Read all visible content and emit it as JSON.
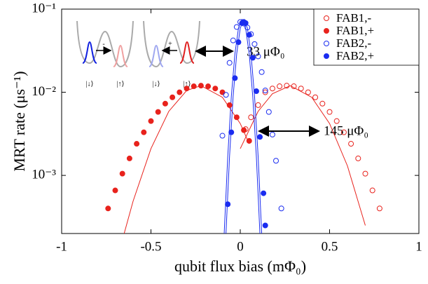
{
  "chart_data": {
    "type": "scatter",
    "xlabel": "qubit flux bias (mΦ₀)",
    "ylabel": "MRT rate (μs⁻¹)",
    "xlim": [
      -1,
      1
    ],
    "ylim": [
      0.0002,
      0.1
    ],
    "ylog": true,
    "xticks": [
      -1,
      -0.5,
      0,
      0.5,
      1
    ],
    "yticks": [
      {
        "value": 0.001,
        "label": "10⁻³"
      },
      {
        "value": 0.01,
        "label": "10⁻²"
      },
      {
        "value": 0.1,
        "label": "10⁻¹"
      }
    ],
    "legend": "upper right",
    "series": [
      {
        "name": "FAB1,-",
        "color": "#e8221c",
        "marker": "open",
        "x": [
          0.03,
          0.06,
          0.1,
          0.14,
          0.18,
          0.22,
          0.26,
          0.3,
          0.34,
          0.38,
          0.42,
          0.46,
          0.5,
          0.54,
          0.58,
          0.62,
          0.66,
          0.7,
          0.74,
          0.78
        ],
        "values": [
          0.0036,
          0.005,
          0.007,
          0.01,
          0.0111,
          0.0118,
          0.012,
          0.0118,
          0.0111,
          0.01,
          0.0087,
          0.0073,
          0.0058,
          0.0045,
          0.0033,
          0.0024,
          0.0016,
          0.00105,
          0.00066,
          0.0004
        ]
      },
      {
        "name": "FAB1,+",
        "color": "#e8221c",
        "marker": "filled",
        "x": [
          -0.74,
          -0.7,
          -0.66,
          -0.62,
          -0.58,
          -0.54,
          -0.5,
          -0.46,
          -0.42,
          -0.38,
          -0.34,
          -0.3,
          -0.26,
          -0.22,
          -0.18,
          -0.14,
          -0.1,
          -0.06,
          -0.02,
          0.02,
          0.05
        ],
        "values": [
          0.0004,
          0.00066,
          0.00105,
          0.0016,
          0.0024,
          0.0033,
          0.0045,
          0.0058,
          0.0073,
          0.0087,
          0.01,
          0.0111,
          0.0118,
          0.012,
          0.0118,
          0.0111,
          0.01,
          0.007,
          0.005,
          0.0035,
          0.0026
        ]
      },
      {
        "name": "FAB2,-",
        "color": "#1a2cf0",
        "marker": "open",
        "x": [
          -0.1,
          -0.08,
          -0.06,
          -0.04,
          -0.02,
          0.0,
          0.02,
          0.04,
          0.06,
          0.08,
          0.1,
          0.12,
          0.14,
          0.16,
          0.18,
          0.2,
          0.23
        ],
        "values": [
          0.003,
          0.0093,
          0.0226,
          0.042,
          0.061,
          0.07,
          0.067,
          0.06,
          0.05,
          0.038,
          0.027,
          0.0175,
          0.0105,
          0.0058,
          0.0031,
          0.0015,
          0.0004
        ]
      },
      {
        "name": "FAB2,+",
        "color": "#1a2cf0",
        "marker": "filled",
        "x": [
          -0.07,
          -0.05,
          -0.03,
          -0.01,
          0.01,
          0.02,
          0.03,
          0.05,
          0.07,
          0.09,
          0.11,
          0.13,
          0.14
        ],
        "values": [
          0.00045,
          0.0033,
          0.0148,
          0.04,
          0.068,
          0.07,
          0.068,
          0.049,
          0.026,
          0.0103,
          0.0029,
          0.00061,
          0.00025
        ]
      }
    ],
    "fits": [
      {
        "color": "#e8221c",
        "x": [
          -0.65,
          -0.6,
          -0.5,
          -0.4,
          -0.3,
          -0.22,
          -0.1,
          0,
          0.05
        ],
        "values": [
          0.0002,
          0.00049,
          0.0021,
          0.0059,
          0.0105,
          0.012,
          0.0087,
          0.0042,
          0.0024
        ]
      },
      {
        "color": "#e8221c",
        "x": [
          0,
          0.1,
          0.18,
          0.28,
          0.4,
          0.5,
          0.6,
          0.7
        ],
        "values": [
          0.0021,
          0.0059,
          0.0096,
          0.012,
          0.0087,
          0.0042,
          0.0013,
          0.00025
        ]
      },
      {
        "color": "#1a2cf0",
        "x": [
          -0.08,
          -0.06,
          -0.04,
          -0.02,
          0,
          0.02,
          0.04,
          0.06,
          0.08,
          0.1,
          0.12
        ],
        "values": [
          0.0002,
          0.0017,
          0.0089,
          0.029,
          0.059,
          0.075,
          0.059,
          0.029,
          0.0089,
          0.0017,
          0.0002
        ]
      },
      {
        "color": "#1a2cf0",
        "x": [
          -0.09,
          -0.07,
          -0.05,
          -0.03,
          -0.01,
          0.01,
          0.03,
          0.05,
          0.07,
          0.09,
          0.11
        ],
        "values": [
          0.0002,
          0.0017,
          0.0089,
          0.029,
          0.059,
          0.075,
          0.059,
          0.029,
          0.0089,
          0.0017,
          0.0002
        ]
      }
    ],
    "annotations": [
      "33 μΦ₀",
      "145 μΦ₀"
    ],
    "inset_labels": [
      "|↓⟩",
      "|↑⟩",
      "-",
      "|↓⟩",
      "|↑⟩",
      "+"
    ]
  }
}
